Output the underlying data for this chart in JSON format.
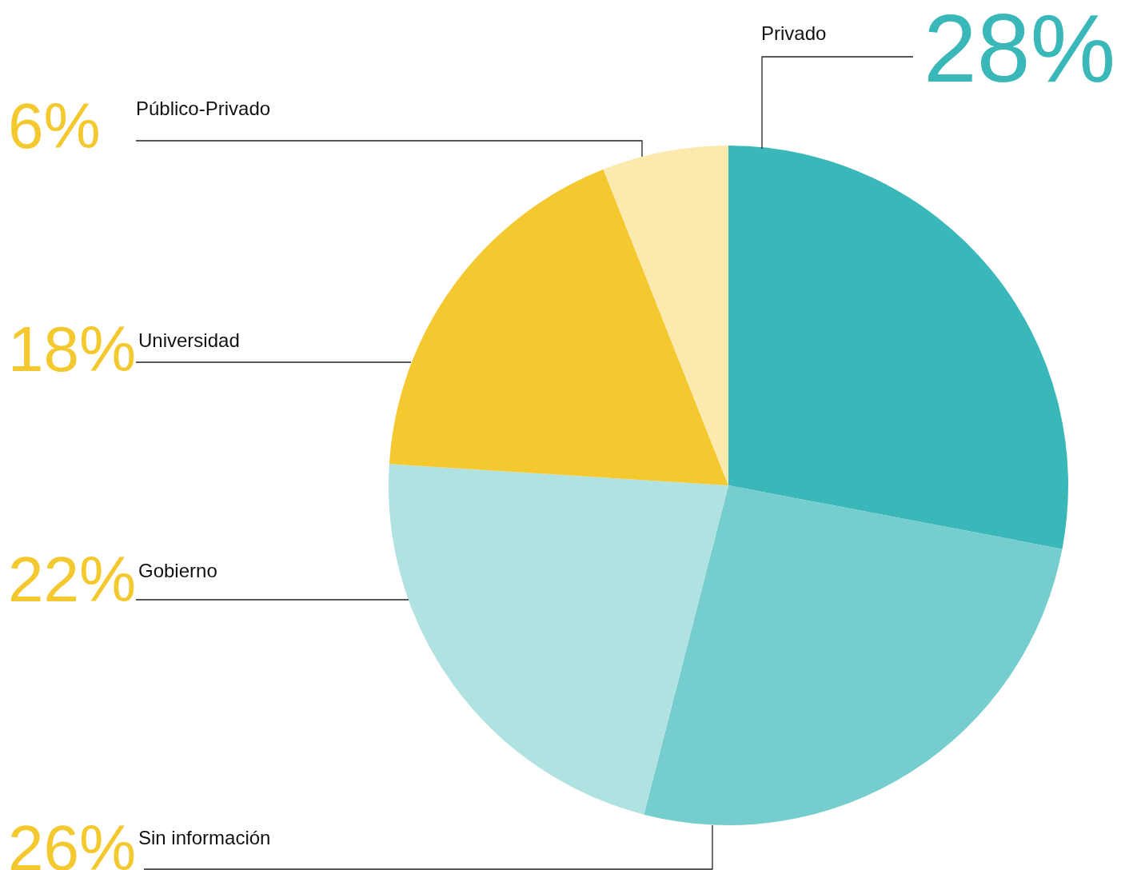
{
  "chart_data": {
    "type": "pie",
    "categories": [
      "Privado",
      "Sin información",
      "Gobierno",
      "Universidad",
      "Público-Privado"
    ],
    "values": [
      28,
      26,
      22,
      18,
      6
    ],
    "colors": [
      "#3ab8b9",
      "#76cdce",
      "#b1e2e2",
      "#f4c92f",
      "#fbe9ae"
    ],
    "value_labels": [
      "28%",
      "26%",
      "22%",
      "18%",
      "6%"
    ],
    "legend": false
  }
}
